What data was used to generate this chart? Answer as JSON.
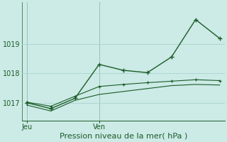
{
  "background_color": "#cceae6",
  "grid_color": "#aad4d0",
  "line_color": "#1a5c28",
  "title": "Pression niveau de la mer( hPa )",
  "ylim": [
    1016.4,
    1020.4
  ],
  "yticks": [
    1017,
    1018,
    1019
  ],
  "xlim": [
    -0.2,
    8.2
  ],
  "x_ticks": [
    0,
    3
  ],
  "x_tick_labels": [
    "Jeu",
    "Ven"
  ],
  "main_line_x": [
    0,
    1,
    2,
    3,
    4,
    5,
    6,
    7,
    8
  ],
  "main_line_y": [
    1017.0,
    1016.8,
    1017.15,
    1018.3,
    1018.1,
    1018.02,
    1018.55,
    1019.82,
    1019.18
  ],
  "band_upper_x": [
    0,
    1,
    2,
    3,
    4,
    5,
    6,
    7,
    8
  ],
  "band_upper_y": [
    1017.02,
    1016.88,
    1017.22,
    1017.55,
    1017.62,
    1017.68,
    1017.73,
    1017.78,
    1017.75
  ],
  "band_lower_x": [
    0,
    1,
    2,
    3,
    4,
    5,
    6,
    7,
    8
  ],
  "band_lower_y": [
    1016.92,
    1016.72,
    1017.08,
    1017.28,
    1017.38,
    1017.48,
    1017.58,
    1017.62,
    1017.6
  ],
  "vline_x": [
    0,
    3
  ],
  "fig_width": 3.2,
  "fig_height": 2.0,
  "dpi": 100,
  "tick_fontsize": 7,
  "xlabel_fontsize": 8,
  "ytick_label_color": "#1a5c28",
  "xtick_label_color": "#1a5c28"
}
